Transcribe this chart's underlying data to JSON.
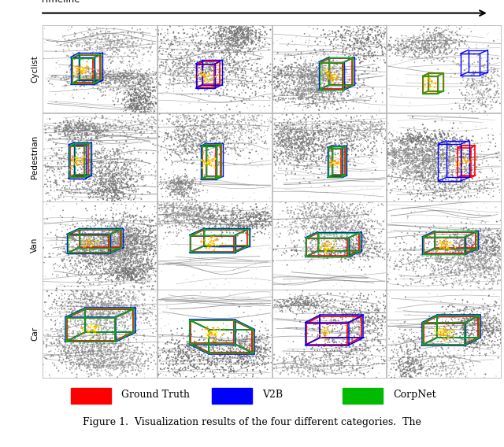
{
  "title": "Timeline",
  "row_labels": [
    "Cyclist",
    "Pedestrian",
    "Van",
    "Car"
  ],
  "n_rows": 4,
  "n_cols": 4,
  "legend_items": [
    {
      "label": "Ground Truth",
      "color": "#ff0000"
    },
    {
      "label": "V2B",
      "color": "#0000ff"
    },
    {
      "label": "CorpNet",
      "color": "#00bb00"
    }
  ],
  "caption": "Figure 1.  Visualization results of the four different categories.  The",
  "cell_bg": "#f8f8f8",
  "figsize": [
    6.4,
    5.68
  ],
  "dpi": 100,
  "RED": "#ff0000",
  "BLUE": "#0000ff",
  "GREEN": "#00bb00",
  "ORANGE": "#ffa500",
  "YELLOW": "#ffff00"
}
